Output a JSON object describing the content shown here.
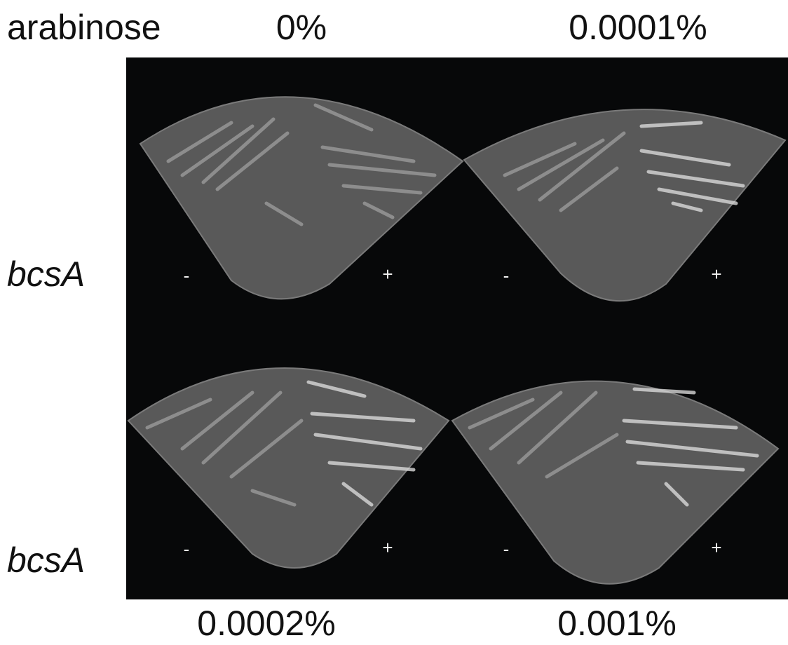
{
  "header": {
    "label": "arabinose"
  },
  "rows": [
    {
      "strain": "bcsA",
      "panels": [
        {
          "concentration": "0%",
          "minus": "-",
          "plus": "+"
        },
        {
          "concentration": "0.0001%",
          "minus": "-",
          "plus": "+"
        }
      ]
    },
    {
      "strain": "bcsA",
      "panels": [
        {
          "concentration": "0.0002%",
          "minus": "-",
          "plus": "+"
        },
        {
          "concentration": "0.001%",
          "minus": "-",
          "plus": "+"
        }
      ]
    }
  ]
}
